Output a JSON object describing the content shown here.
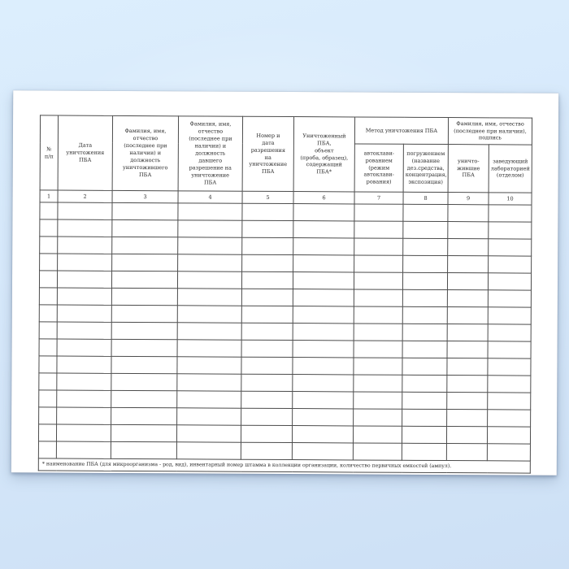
{
  "document": {
    "header_groups": {
      "method": "Метод уничтожения ПБА",
      "fio_sign": "Фамилия, имя, отчество\n(последнее при наличии),\nподпись"
    },
    "columns": [
      {
        "no": "1",
        "label": "№\nп/п"
      },
      {
        "no": "2",
        "label": "Дата\nуничтожения ПБА"
      },
      {
        "no": "3",
        "label": "Фамилия, имя,\nотчество\n(последнее при\nналичии) и\nдолжность\nуничтожившего\nПБА"
      },
      {
        "no": "4",
        "label": "Фамилия, имя,\nотчество\n(последнее при\nналичии) и\nдолжность\nдавшего\nразрешение на\nуничтожение\nПБА"
      },
      {
        "no": "5",
        "label": "Номер и\nдата\nразрешения\nна\nуничтожение\nПБА"
      },
      {
        "no": "6",
        "label": "Уничтоженный ПБА,\nобъект\n(проба, образец),\nсодержащий\nПБА*"
      },
      {
        "no": "7",
        "label": "автоклави-\nрованием\n(режим\nавтоклави-\nрования)"
      },
      {
        "no": "8",
        "label": "погружением\n(название\nдез.средства,\nконцентрация,\nэкспозиция)"
      },
      {
        "no": "9",
        "label": "уничто-\nжившие\nПБА"
      },
      {
        "no": "10",
        "label": "заведующий\nлабораторией\n(отделом)"
      }
    ],
    "empty_row_count": 15,
    "columns_total": 10,
    "footnote": "* наименование ПБА (для микроорганизма - род, вид), инвентарный номер штамма в коллекции организации, количество первичных емкостей (ампул)."
  },
  "colors": {
    "grid_line": "#4c4c4c",
    "page": "#ffffff",
    "background_top": "#dceefd",
    "background_bottom": "#cde0f5"
  }
}
